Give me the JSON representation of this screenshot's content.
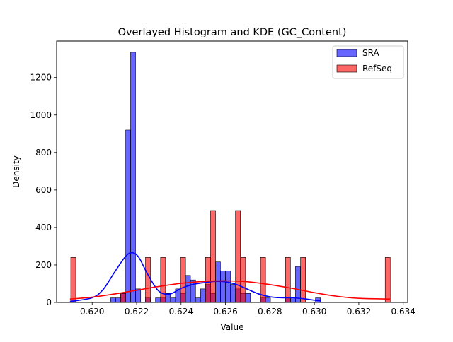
{
  "chart_data": {
    "type": "bar",
    "title": "Overlayed Histogram and KDE (GC_Content)",
    "xlabel": "Value",
    "ylabel": "Density",
    "xlim": [
      0.6184,
      0.6342
    ],
    "ylim": [
      0,
      1395
    ],
    "xticks": [
      0.62,
      0.622,
      0.624,
      0.626,
      0.628,
      0.63,
      0.632,
      0.634
    ],
    "xtick_labels": [
      "0.620",
      "0.622",
      "0.624",
      "0.626",
      "0.628",
      "0.630",
      "0.632",
      "0.634"
    ],
    "yticks": [
      0,
      200,
      400,
      600,
      800,
      1000,
      1200
    ],
    "ytick_labels": [
      "0",
      "200",
      "400",
      "600",
      "800",
      "1000",
      "1200"
    ],
    "legend": {
      "position": "upper right"
    },
    "series": [
      {
        "name": "SRA",
        "color": "#0000ff",
        "bin_width": 0.000225,
        "bins": [
          {
            "x": 0.61915,
            "y": 8
          },
          {
            "x": 0.62094,
            "y": 24
          },
          {
            "x": 0.62117,
            "y": 24
          },
          {
            "x": 0.62139,
            "y": 48
          },
          {
            "x": 0.62162,
            "y": 920
          },
          {
            "x": 0.62184,
            "y": 1335
          },
          {
            "x": 0.62207,
            "y": 72
          },
          {
            "x": 0.62251,
            "y": 24
          },
          {
            "x": 0.62296,
            "y": 24
          },
          {
            "x": 0.62319,
            "y": 24
          },
          {
            "x": 0.62341,
            "y": 48
          },
          {
            "x": 0.62364,
            "y": 24
          },
          {
            "x": 0.62386,
            "y": 72
          },
          {
            "x": 0.62409,
            "y": 48
          },
          {
            "x": 0.62431,
            "y": 144
          },
          {
            "x": 0.62454,
            "y": 120
          },
          {
            "x": 0.62476,
            "y": 24
          },
          {
            "x": 0.62499,
            "y": 72
          },
          {
            "x": 0.62521,
            "y": 96
          },
          {
            "x": 0.62544,
            "y": 48
          },
          {
            "x": 0.62566,
            "y": 216
          },
          {
            "x": 0.62589,
            "y": 168
          },
          {
            "x": 0.62611,
            "y": 168
          },
          {
            "x": 0.62634,
            "y": 96
          },
          {
            "x": 0.62656,
            "y": 72
          },
          {
            "x": 0.62679,
            "y": 48
          },
          {
            "x": 0.62701,
            "y": 48
          },
          {
            "x": 0.62769,
            "y": 24
          },
          {
            "x": 0.62791,
            "y": 24
          },
          {
            "x": 0.62881,
            "y": 24
          },
          {
            "x": 0.62904,
            "y": 24
          },
          {
            "x": 0.62926,
            "y": 192
          },
          {
            "x": 0.63016,
            "y": 24
          }
        ],
        "kde": {
          "x": [
            0.619,
            0.62,
            0.6205,
            0.621,
            0.6215,
            0.6218,
            0.6221,
            0.6225,
            0.623,
            0.6235,
            0.624,
            0.6245,
            0.625,
            0.6255,
            0.626,
            0.6265,
            0.627,
            0.6275,
            0.628,
            0.6285,
            0.629,
            0.6295,
            0.63,
            0.6303
          ],
          "y": [
            5,
            25,
            70,
            160,
            245,
            265,
            240,
            150,
            60,
            45,
            75,
            95,
            105,
            112,
            110,
            95,
            70,
            45,
            30,
            25,
            25,
            20,
            12,
            8
          ]
        }
      },
      {
        "name": "RefSeq",
        "color": "#ff0000",
        "bin_width": 0.000225,
        "bins": [
          {
            "x": 0.61915,
            "y": 240
          },
          {
            "x": 0.62139,
            "y": 48
          },
          {
            "x": 0.62251,
            "y": 240
          },
          {
            "x": 0.62319,
            "y": 240
          },
          {
            "x": 0.62409,
            "y": 240
          },
          {
            "x": 0.62521,
            "y": 240
          },
          {
            "x": 0.62544,
            "y": 490
          },
          {
            "x": 0.62656,
            "y": 490
          },
          {
            "x": 0.62679,
            "y": 240
          },
          {
            "x": 0.62769,
            "y": 240
          },
          {
            "x": 0.62881,
            "y": 240
          },
          {
            "x": 0.62949,
            "y": 240
          },
          {
            "x": 0.6333,
            "y": 240
          }
        ],
        "kde": {
          "x": [
            0.619,
            0.62,
            0.621,
            0.622,
            0.623,
            0.624,
            0.625,
            0.626,
            0.627,
            0.628,
            0.629,
            0.63,
            0.631,
            0.632,
            0.6334
          ],
          "y": [
            18,
            28,
            45,
            65,
            85,
            102,
            112,
            115,
            110,
            95,
            75,
            52,
            33,
            22,
            18
          ]
        }
      }
    ]
  }
}
